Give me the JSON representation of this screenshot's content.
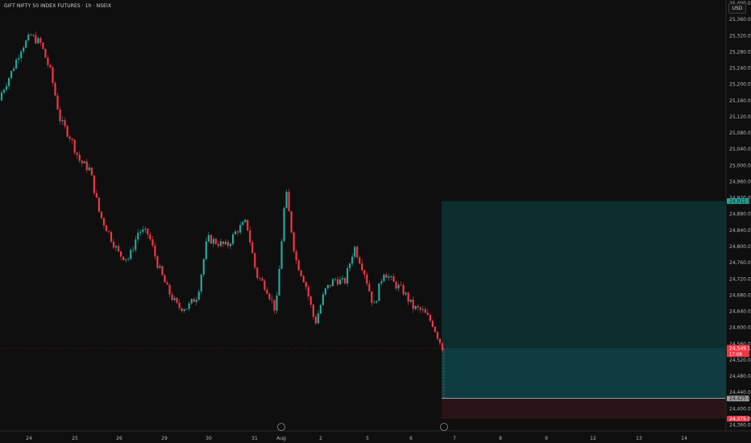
{
  "header": {
    "title": "GIFT NIFTY 50 INDEX FUTURES · 1h · NSEIX",
    "currency": "USD"
  },
  "colors": {
    "background": "#0f0f0f",
    "up": "#26a69a",
    "down": "#f23645",
    "axis_text": "#b2b5be",
    "profit_zone": "#26a69a",
    "loss_zone": "#f23645"
  },
  "chart_data": {
    "type": "candlestick",
    "title": "GIFT NIFTY 50 INDEX FUTURES",
    "interval": "1h",
    "exchange": "NSEIX",
    "y_axis": {
      "ticks": [
        "25,400.0",
        "25,360.0",
        "25,320.0",
        "25,280.0",
        "25,240.0",
        "25,200.0",
        "25,160.0",
        "25,120.0",
        "25,080.0",
        "25,040.0",
        "25,000.0",
        "24,960.0",
        "24,920.0",
        "24,880.0",
        "24,840.0",
        "24,800.0",
        "24,760.0",
        "24,720.0",
        "24,680.0",
        "24,640.0",
        "24,600.0",
        "24,560.0",
        "24,520.0",
        "24,480.0",
        "24,440.0",
        "24,400.0",
        "24,360.0"
      ],
      "range": [
        24345,
        25408
      ]
    },
    "x_axis": {
      "ticks": [
        "24",
        "25",
        "26",
        "29",
        "30",
        "31",
        "Aug",
        "2",
        "5",
        "6",
        "7",
        "8",
        "9",
        "12",
        "13",
        "14"
      ]
    },
    "price_close_path": [
      25180,
      25230,
      25290,
      25320,
      25300,
      25230,
      25110,
      25070,
      25010,
      24990,
      24880,
      24830,
      24780,
      24770,
      24840,
      24830,
      24750,
      24690,
      24650,
      24650,
      24680,
      24820,
      24810,
      24800,
      24840,
      24860,
      24730,
      24700,
      24640,
      24940,
      24770,
      24710,
      24610,
      24690,
      24720,
      24710,
      24800,
      24740,
      24650,
      24740,
      24710,
      24690,
      24650,
      24640,
      24610,
      24550
    ],
    "position": {
      "type": "long",
      "target_price": "24,912.0",
      "entry_price": "24,549.1",
      "entry_sublabel": "17:08",
      "stop_price": "24,375.0",
      "marker_price": "24,425.0"
    }
  }
}
